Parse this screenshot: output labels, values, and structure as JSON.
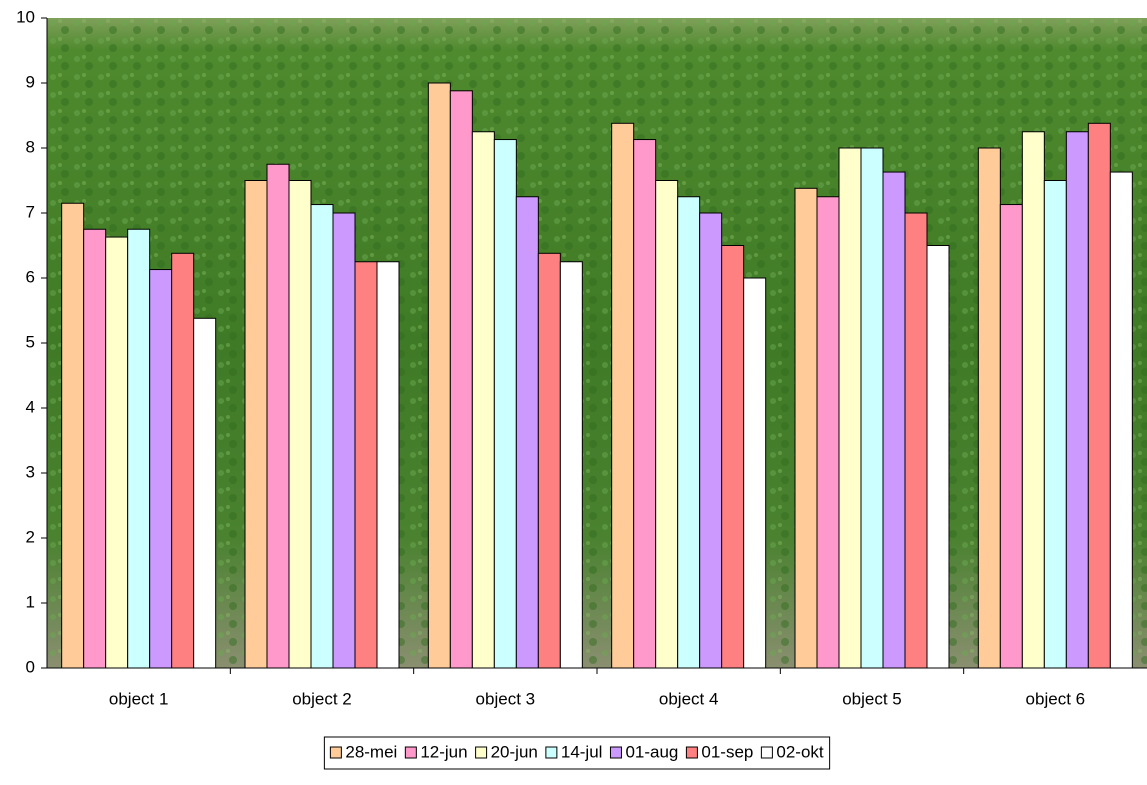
{
  "chart_data": {
    "type": "bar",
    "categories": [
      "object 1",
      "object 2",
      "object 3",
      "object 4",
      "object 5",
      "object 6"
    ],
    "series": [
      {
        "name": "28-mei",
        "color": "#ffcc99",
        "values": [
          7.15,
          7.5,
          9.0,
          8.38,
          7.38,
          8.0
        ]
      },
      {
        "name": "12-jun",
        "color": "#ff99cc",
        "values": [
          6.75,
          7.75,
          8.88,
          8.13,
          7.25,
          7.13
        ]
      },
      {
        "name": "20-jun",
        "color": "#ffffcc",
        "values": [
          6.63,
          7.5,
          8.25,
          7.5,
          8.0,
          8.25
        ]
      },
      {
        "name": "14-jul",
        "color": "#ccffff",
        "values": [
          6.75,
          7.13,
          8.13,
          7.25,
          8.0,
          7.5
        ]
      },
      {
        "name": "01-aug",
        "color": "#cc99ff",
        "values": [
          6.13,
          7.0,
          7.25,
          7.0,
          7.63,
          8.25
        ]
      },
      {
        "name": "01-sep",
        "color": "#ff8080",
        "values": [
          6.38,
          6.25,
          6.38,
          6.5,
          7.0,
          8.38
        ]
      },
      {
        "name": "02-okt",
        "color": "#ffffff",
        "values": [
          5.38,
          6.25,
          6.25,
          6.0,
          6.5,
          7.63
        ]
      }
    ],
    "ylim": [
      0,
      10
    ],
    "yticks": [
      0,
      1,
      2,
      3,
      4,
      5,
      6,
      7,
      8,
      9,
      10
    ],
    "legend": "bottom"
  }
}
